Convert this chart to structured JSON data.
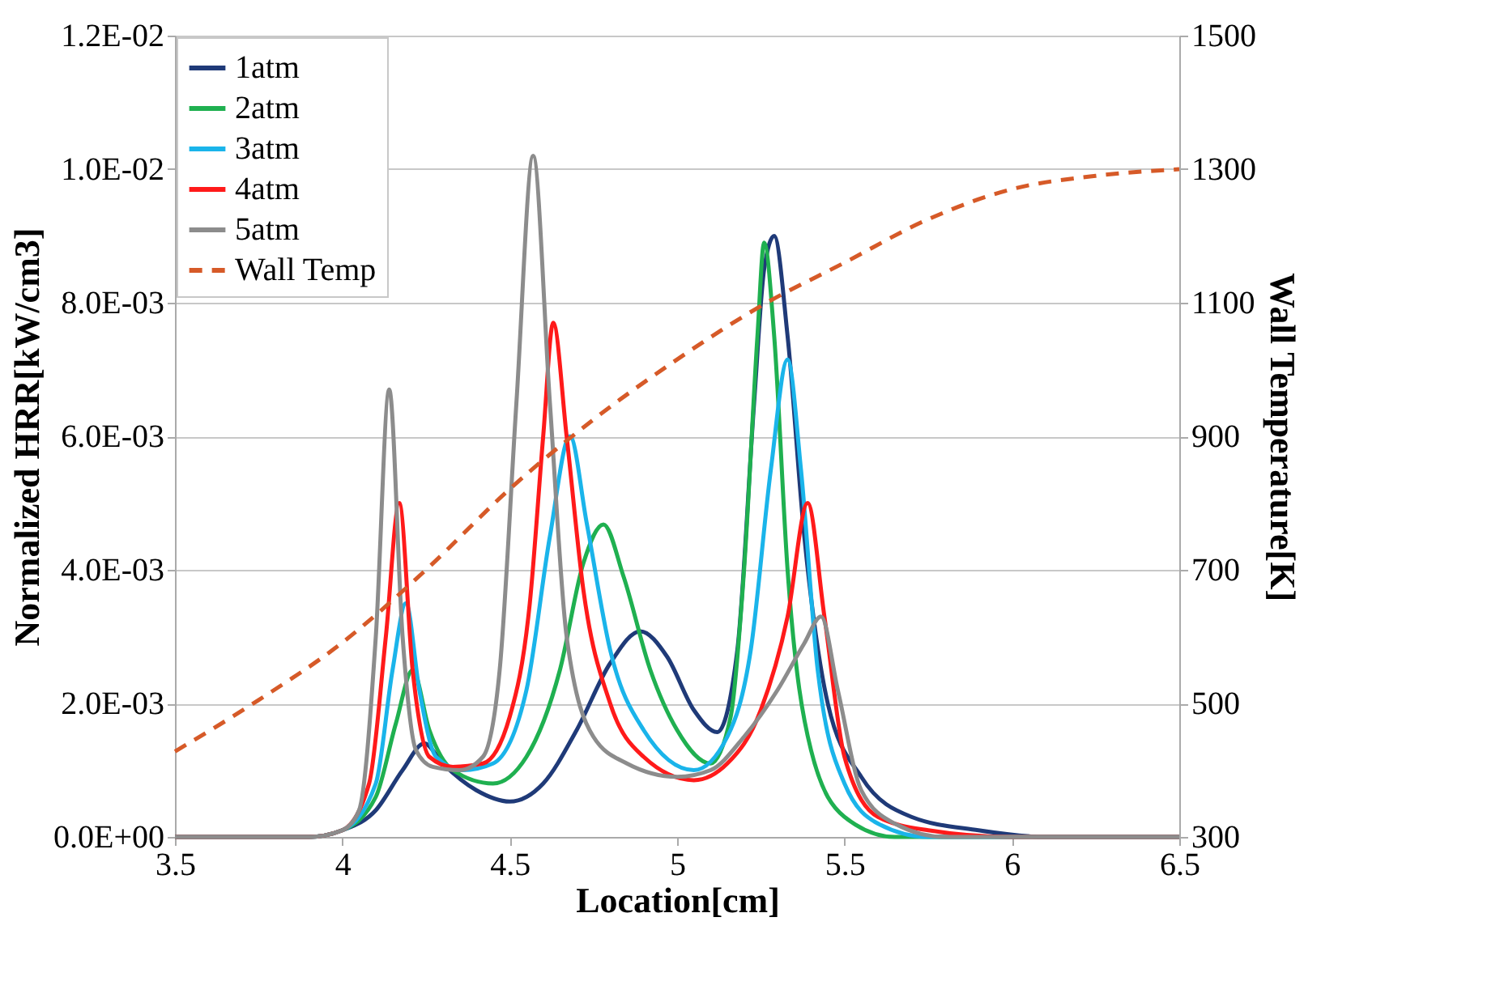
{
  "chart_data": {
    "type": "line",
    "xlabel": "Location[cm]",
    "ylabel": "Normalized HRR[kW/cm3]",
    "y2label": "Wall Temperature[K]",
    "xlim": [
      3.5,
      6.5
    ],
    "xticks": [
      3.5,
      4,
      4.5,
      5,
      5.5,
      6,
      6.5
    ],
    "ylim": [
      0,
      0.012
    ],
    "yticks": [
      {
        "value": 0,
        "label": "0.0E+00"
      },
      {
        "value": 0.002,
        "label": "2.0E-03"
      },
      {
        "value": 0.004,
        "label": "4.0E-03"
      },
      {
        "value": 0.006,
        "label": "6.0E-03"
      },
      {
        "value": 0.008,
        "label": "8.0E-03"
      },
      {
        "value": 0.01,
        "label": "1.0E-02"
      },
      {
        "value": 0.012,
        "label": "1.2E-02"
      }
    ],
    "y2lim": [
      300,
      1500
    ],
    "y2ticks": [
      300,
      500,
      700,
      900,
      1100,
      1300,
      1500
    ],
    "grid": "y",
    "legend": "top left",
    "marker": "none",
    "series": [
      {
        "name": "1atm",
        "color": "#1f3a78",
        "line_style": "solid",
        "x": [
          3.5,
          3.9,
          4.0,
          4.1,
          4.18,
          4.245,
          4.3,
          4.4,
          4.5,
          4.6,
          4.7,
          4.8,
          4.89,
          4.97,
          5.05,
          5.12,
          5.18,
          5.23,
          5.26,
          5.29,
          5.33,
          5.38,
          5.45,
          5.55,
          5.7,
          5.9,
          6.1,
          6.5
        ],
        "values": [
          0,
          0,
          0.0001,
          0.0004,
          0.001,
          0.0014,
          0.0011,
          0.0007,
          0.00053,
          0.0008,
          0.0016,
          0.0026,
          0.00308,
          0.0027,
          0.0019,
          0.00157,
          0.0028,
          0.0065,
          0.0085,
          0.009,
          0.0075,
          0.0045,
          0.002,
          0.0009,
          0.0003,
          0.0001,
          0,
          0
        ]
      },
      {
        "name": "2atm",
        "color": "#1fb050",
        "line_style": "solid",
        "x": [
          3.5,
          3.9,
          4.0,
          4.1,
          4.16,
          4.21,
          4.26,
          4.33,
          4.45,
          4.55,
          4.65,
          4.72,
          4.78,
          4.84,
          4.92,
          5.0,
          5.1,
          5.16,
          5.2,
          5.24,
          5.26,
          5.29,
          5.33,
          5.4,
          5.5,
          5.65,
          6.0,
          6.5
        ],
        "values": [
          0,
          0,
          0.0001,
          0.0006,
          0.0017,
          0.0025,
          0.0016,
          0.001,
          0.0008,
          0.0012,
          0.0025,
          0.0041,
          0.00468,
          0.0039,
          0.0025,
          0.0016,
          0.0011,
          0.0018,
          0.004,
          0.0075,
          0.0089,
          0.0075,
          0.004,
          0.0013,
          0.0003,
          0,
          0,
          0
        ]
      },
      {
        "name": "3atm",
        "color": "#1ab4ea",
        "line_style": "solid",
        "x": [
          3.5,
          3.9,
          4.0,
          4.1,
          4.15,
          4.19,
          4.23,
          4.28,
          4.36,
          4.45,
          4.55,
          4.62,
          4.68,
          4.73,
          4.8,
          4.9,
          5.05,
          5.15,
          5.22,
          5.28,
          5.33,
          5.37,
          5.42,
          5.5,
          5.6,
          5.75,
          6.0,
          6.5
        ],
        "values": [
          0,
          0,
          0.0001,
          0.0008,
          0.0025,
          0.0035,
          0.0022,
          0.0012,
          0.001,
          0.0011,
          0.0022,
          0.0045,
          0.006,
          0.0047,
          0.0028,
          0.0016,
          0.001,
          0.0015,
          0.0028,
          0.0055,
          0.00715,
          0.0055,
          0.0025,
          0.0008,
          0.0002,
          0,
          0,
          0
        ]
      },
      {
        "name": "4atm",
        "color": "#ff1a1a",
        "line_style": "solid",
        "x": [
          3.5,
          3.9,
          4.0,
          4.08,
          4.13,
          4.17,
          4.21,
          4.26,
          4.33,
          4.42,
          4.5,
          4.56,
          4.6,
          4.63,
          4.67,
          4.72,
          4.8,
          4.9,
          5.05,
          5.15,
          5.25,
          5.33,
          5.39,
          5.44,
          5.5,
          5.6,
          5.75,
          6.0,
          6.5
        ],
        "values": [
          0,
          0,
          0.0001,
          0.0008,
          0.003,
          0.005,
          0.0025,
          0.0012,
          0.00105,
          0.0011,
          0.0018,
          0.0035,
          0.006,
          0.0077,
          0.006,
          0.0037,
          0.002,
          0.0012,
          0.00085,
          0.0011,
          0.0019,
          0.0033,
          0.005,
          0.0033,
          0.0012,
          0.0003,
          0.0001,
          0,
          0
        ]
      },
      {
        "name": "5atm",
        "color": "#8c8c8c",
        "line_style": "solid",
        "x": [
          3.5,
          3.9,
          4.0,
          4.05,
          4.1,
          4.14,
          4.18,
          4.22,
          4.27,
          4.35,
          4.42,
          4.47,
          4.52,
          4.57,
          4.62,
          4.67,
          4.75,
          4.85,
          5.0,
          5.1,
          5.2,
          5.3,
          5.38,
          5.43,
          5.48,
          5.55,
          5.65,
          5.8,
          6.0,
          6.5
        ],
        "values": [
          0,
          0,
          0.0001,
          0.0004,
          0.003,
          0.0067,
          0.003,
          0.0013,
          0.00105,
          0.001,
          0.0012,
          0.0025,
          0.0065,
          0.0102,
          0.0065,
          0.003,
          0.0015,
          0.0011,
          0.0009,
          0.001,
          0.0015,
          0.0022,
          0.0029,
          0.0033,
          0.0022,
          0.0007,
          0.0002,
          0,
          0,
          0
        ]
      },
      {
        "name": "Wall Temp",
        "color": "#d65a28",
        "line_style": "dashed",
        "axis": "y2",
        "x": [
          3.5,
          3.75,
          4.0,
          4.25,
          4.5,
          4.75,
          5.0,
          5.25,
          5.5,
          5.75,
          6.0,
          6.25,
          6.5
        ],
        "values": [
          428,
          505,
          591,
          700,
          821,
          925,
          1015,
          1095,
          1160,
          1225,
          1270,
          1290,
          1300
        ]
      }
    ]
  }
}
